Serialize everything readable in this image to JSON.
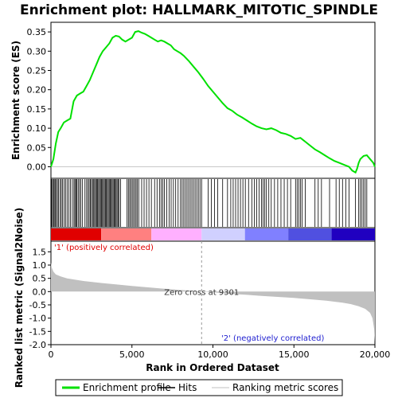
{
  "chart_data": {
    "type": "line",
    "title": "Enrichment plot: HALLMARK_MITOTIC_SPINDLE",
    "xlabel": "Rank in Ordered Dataset",
    "xlim": [
      0,
      20000
    ],
    "x_ticks": [
      {
        "value": 0,
        "label": "0"
      },
      {
        "value": 5000,
        "label": "5,000"
      },
      {
        "value": 10000,
        "label": "10,000"
      },
      {
        "value": 15000,
        "label": "15,000"
      },
      {
        "value": 20000,
        "label": "20,000"
      }
    ],
    "enrichment_panel": {
      "ylabel": "Enrichment score (ES)",
      "ylim": [
        -0.03,
        0.375
      ],
      "y_ticks": [
        {
          "value": 0.0,
          "label": "0.00"
        },
        {
          "value": 0.05,
          "label": "0.05"
        },
        {
          "value": 0.1,
          "label": "0.10"
        },
        {
          "value": 0.15,
          "label": "0.15"
        },
        {
          "value": 0.2,
          "label": "0.20"
        },
        {
          "value": 0.25,
          "label": "0.25"
        },
        {
          "value": 0.3,
          "label": "0.30"
        },
        {
          "value": 0.35,
          "label": "0.35"
        }
      ],
      "series": [
        {
          "name": "Enrichment profile",
          "color": "#00e000",
          "x": [
            0,
            150,
            300,
            450,
            600,
            800,
            1000,
            1200,
            1400,
            1600,
            1800,
            2000,
            2200,
            2400,
            2600,
            2800,
            3000,
            3200,
            3400,
            3600,
            3800,
            4000,
            4200,
            4400,
            4600,
            4800,
            5000,
            5200,
            5400,
            5600,
            5800,
            6000,
            6200,
            6400,
            6600,
            6800,
            7000,
            7200,
            7400,
            7600,
            7800,
            8000,
            8200,
            8500,
            8800,
            9100,
            9400,
            9700,
            10000,
            10300,
            10600,
            10900,
            11200,
            11500,
            11800,
            12100,
            12400,
            12700,
            13000,
            13300,
            13600,
            13900,
            14200,
            14500,
            14800,
            15100,
            15400,
            15700,
            16000,
            16300,
            16600,
            16900,
            17200,
            17500,
            17800,
            18100,
            18400,
            18600,
            18800,
            18900,
            19000,
            19100,
            19300,
            19500,
            19700,
            19900,
            20000
          ],
          "y": [
            0.0,
            0.02,
            0.06,
            0.09,
            0.1,
            0.115,
            0.12,
            0.125,
            0.17,
            0.185,
            0.19,
            0.195,
            0.21,
            0.225,
            0.245,
            0.265,
            0.285,
            0.3,
            0.31,
            0.32,
            0.335,
            0.34,
            0.338,
            0.33,
            0.325,
            0.33,
            0.335,
            0.35,
            0.352,
            0.348,
            0.345,
            0.34,
            0.335,
            0.33,
            0.325,
            0.328,
            0.325,
            0.32,
            0.315,
            0.305,
            0.3,
            0.295,
            0.288,
            0.275,
            0.26,
            0.245,
            0.228,
            0.21,
            0.195,
            0.18,
            0.165,
            0.152,
            0.145,
            0.135,
            0.128,
            0.12,
            0.112,
            0.105,
            0.1,
            0.097,
            0.1,
            0.095,
            0.088,
            0.085,
            0.08,
            0.072,
            0.075,
            0.065,
            0.055,
            0.045,
            0.038,
            0.03,
            0.022,
            0.015,
            0.01,
            0.005,
            0.0,
            -0.01,
            -0.015,
            -0.005,
            0.01,
            0.02,
            0.028,
            0.03,
            0.02,
            0.01,
            0.0
          ]
        }
      ]
    },
    "hits_panel": {
      "hit_ranks": [
        30,
        90,
        150,
        200,
        260,
        330,
        400,
        470,
        560,
        640,
        720,
        820,
        900,
        1000,
        1100,
        1200,
        1320,
        1420,
        1480,
        1540,
        1600,
        1680,
        1760,
        1840,
        1950,
        2100,
        2200,
        2280,
        2360,
        2430,
        2500,
        2570,
        2640,
        2700,
        2760,
        2820,
        2880,
        2940,
        3000,
        3060,
        3120,
        3180,
        3240,
        3300,
        3360,
        3420,
        3480,
        3540,
        3600,
        3660,
        3720,
        3780,
        3840,
        3900,
        3960,
        4020,
        4080,
        4140,
        4200,
        4300,
        4700,
        4780,
        4860,
        4940,
        5020,
        5100,
        5180,
        5260,
        5340,
        5420,
        5600,
        5750,
        5900,
        6050,
        6200,
        6400,
        6550,
        6700,
        6800,
        6900,
        7000,
        7150,
        7300,
        7420,
        7560,
        7700,
        7850,
        8000,
        8100,
        8200,
        8300,
        8400,
        8500,
        8600,
        8700,
        8800,
        8900,
        9000,
        9100,
        9200,
        9300,
        9700,
        9900,
        10100,
        10300,
        10600,
        10900,
        11100,
        11250,
        11400,
        11550,
        11700,
        11850,
        12000,
        12200,
        12400,
        12550,
        12700,
        12850,
        13000,
        13100,
        13200,
        13300,
        13450,
        13600,
        13800,
        14000,
        14200,
        14400,
        14600,
        14800,
        15100,
        15200,
        15300,
        15400,
        15500,
        15700,
        16300,
        16500,
        16700,
        17200,
        17600,
        17800,
        18000,
        18200,
        18400,
        18800,
        19000,
        19100,
        19200,
        19300,
        19400,
        19500
      ]
    },
    "rank_bar": {
      "colors": [
        "#e00000",
        "#ff8080",
        "#ffb0ff",
        "#d0d0ff",
        "#8080ff",
        "#5050e0",
        "#2000c0"
      ],
      "label_positive": "'1' (positively correlated)",
      "label_negative": "'2' (negatively correlated)"
    },
    "metric_panel": {
      "ylabel": "Ranked list metric (Signal2Noise)",
      "ylim": [
        -2.0,
        1.9
      ],
      "y_ticks": [
        {
          "value": -2.0,
          "label": "-2.0"
        },
        {
          "value": -1.5,
          "label": "-1.5"
        },
        {
          "value": -1.0,
          "label": "-1.0"
        },
        {
          "value": -0.5,
          "label": "-0.5"
        },
        {
          "value": 0.0,
          "label": "0.0"
        },
        {
          "value": 0.5,
          "label": "0.5"
        },
        {
          "value": 1.0,
          "label": "1.0"
        },
        {
          "value": 1.5,
          "label": "1.5"
        }
      ],
      "fill_color": "#c0c0c0",
      "curve_x": [
        0,
        50,
        150,
        300,
        600,
        1000,
        2000,
        3000,
        4000,
        5000,
        6000,
        7000,
        8000,
        9000,
        9301,
        10000,
        11000,
        12000,
        13000,
        14000,
        15000,
        16000,
        17000,
        18000,
        18500,
        19000,
        19400,
        19700,
        19850,
        19950,
        20000
      ],
      "curve_y": [
        1.1,
        0.9,
        0.75,
        0.65,
        0.57,
        0.5,
        0.4,
        0.33,
        0.27,
        0.21,
        0.16,
        0.11,
        0.06,
        0.02,
        0.0,
        -0.03,
        -0.08,
        -0.12,
        -0.16,
        -0.2,
        -0.24,
        -0.29,
        -0.34,
        -0.42,
        -0.47,
        -0.55,
        -0.65,
        -0.8,
        -1.0,
        -1.4,
        -1.9
      ],
      "zero_cross_label": "Zero cross at 9301",
      "zero_cross_rank": 9301
    },
    "legend": {
      "placement": "bottom",
      "items": [
        {
          "label": "Enrichment profile",
          "color": "#00e000"
        },
        {
          "label": "Hits",
          "color": "#000000"
        },
        {
          "label": "Ranking metric scores",
          "color": "#c0c0c0"
        }
      ]
    }
  }
}
